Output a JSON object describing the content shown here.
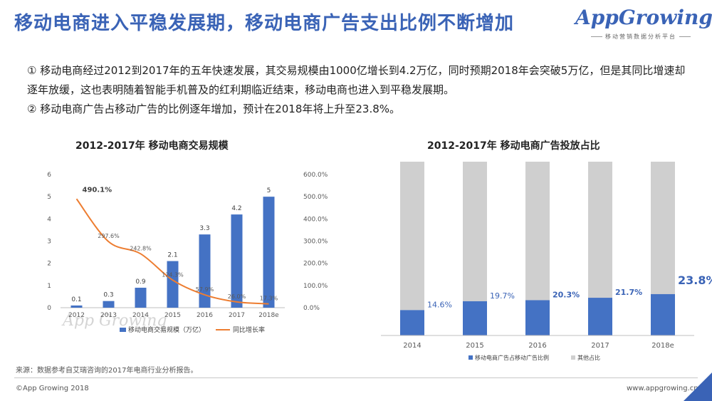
{
  "page": {
    "title": "移动电商进入平稳发展期，移动电商广告支出比例不断增加",
    "logo_text": "AppGrowing",
    "logo_tagline": "移动营销数据分析平台",
    "paragraph1": "① 移动电商经过2012到2017年的五年快速发展，其交易规模由1000亿增长到4.2万亿，同时预期2018年会突破5万亿，但是其同比增速却逐年放缓，这也表明随着智能手机普及的红利期临近结束，移动电商也进入到平稳发展期。",
    "paragraph2": "② 移动电商广告占移动广告的比例逐年增加，预计在2018年将上升至23.8%。",
    "source": "来源：数据参考自艾瑞咨询的2017年电商行业分析报告。",
    "footer_left": "©App Growing 2018",
    "footer_right": "www.appgrowing.cn",
    "watermark": "App Growing"
  },
  "colors": {
    "accent": "#3a63b6",
    "bar": "#4472c4",
    "line": "#ed7d31",
    "other": "#cfcfcf"
  },
  "chart_data": [
    {
      "type": "bar",
      "title": "2012-2017年 移动电商交易规模",
      "categories": [
        "2012",
        "2013",
        "2014",
        "2015",
        "2016",
        "2017",
        "2018e"
      ],
      "series": [
        {
          "name": "移动电商交易规模（万亿）",
          "type": "bar",
          "axis": "left",
          "values": [
            0.1,
            0.3,
            0.9,
            2.1,
            3.3,
            4.2,
            5
          ],
          "labels": [
            "0.1",
            "0.3",
            "0.9",
            "2.1",
            "3.3",
            "4.2",
            "5"
          ]
        },
        {
          "name": "同比增长率",
          "type": "line",
          "axis": "right",
          "values": [
            490.1,
            297.6,
            242.8,
            124.3,
            57.9,
            26.0,
            17.3
          ],
          "labels": [
            "490.1%",
            "297.6%",
            "242.8%",
            "124.3%",
            "57.9%",
            "26.0%",
            "17.3%"
          ]
        }
      ],
      "y_left": {
        "range": [
          0,
          6
        ],
        "ticks": [
          "0",
          "1",
          "2",
          "3",
          "4",
          "5",
          "6"
        ]
      },
      "y_right": {
        "range": [
          0,
          600
        ],
        "ticks": [
          "0.0%",
          "100.0%",
          "200.0%",
          "300.0%",
          "400.0%",
          "500.0%",
          "600.0%"
        ]
      },
      "grid": false,
      "legend": "bottom"
    },
    {
      "type": "bar",
      "stacked": true,
      "percent": true,
      "title": "2012-2017年 移动电商广告投放占比",
      "categories": [
        "2014",
        "2015",
        "2016",
        "2017",
        "2018e"
      ],
      "series": [
        {
          "name": "移动电商广告占移动广告比例",
          "values": [
            14.6,
            19.7,
            20.3,
            21.7,
            23.8
          ],
          "labels": [
            "14.6%",
            "19.7%",
            "20.3%",
            "21.7%",
            "23.8%"
          ]
        },
        {
          "name": "其他占比",
          "values": [
            85.4,
            80.3,
            79.7,
            78.3,
            76.2
          ]
        }
      ],
      "grid": false,
      "legend": "bottom"
    }
  ]
}
